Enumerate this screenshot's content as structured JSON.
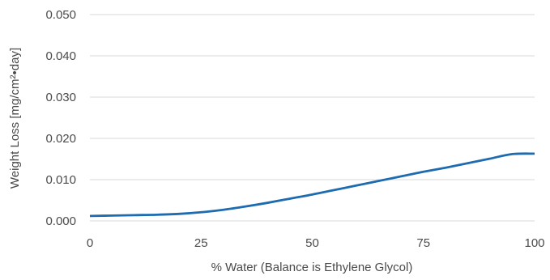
{
  "chart_data": {
    "type": "line",
    "title": "",
    "xlabel": "% Water (Balance is Ethylene Glycol)",
    "ylabel": "Weight Loss [mg/cm²•day]",
    "xlim": [
      0,
      100
    ],
    "ylim": [
      0,
      0.05
    ],
    "x_ticks": [
      "0",
      "25",
      "50",
      "75",
      "100"
    ],
    "y_ticks": [
      "0.000",
      "0.010",
      "0.020",
      "0.030",
      "0.040",
      "0.050"
    ],
    "grid": true,
    "series": [
      {
        "color": "#1f6bb0",
        "x": [
          0,
          5,
          10,
          15,
          20,
          25,
          30,
          35,
          40,
          45,
          50,
          55,
          60,
          65,
          70,
          75,
          80,
          85,
          90,
          95,
          100
        ],
        "y": [
          0.0012,
          0.0013,
          0.0014,
          0.0015,
          0.0017,
          0.0021,
          0.0027,
          0.0035,
          0.0044,
          0.0054,
          0.0064,
          0.0075,
          0.0086,
          0.0097,
          0.0108,
          0.0119,
          0.0129,
          0.014,
          0.0151,
          0.0162,
          0.0163
        ]
      }
    ]
  }
}
